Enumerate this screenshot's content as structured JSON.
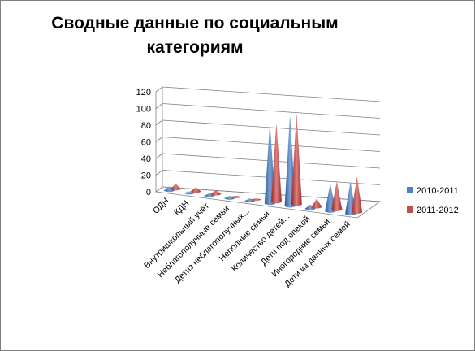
{
  "chart_data": {
    "type": "bar",
    "title": "Сводные данные по социальным категориям",
    "title_lines": [
      "Сводные данные по социальным",
      "категориям"
    ],
    "categories": [
      "ОДН",
      "КДН",
      "Внутришкольный учёт",
      "Неблагополучные семьи",
      "Детиз неблагополучных...",
      "Неполные семьи",
      "Количество детей...",
      "Дети под опекой",
      "Иногородние семьи",
      "Дети из данных семей"
    ],
    "series": [
      {
        "name": "2010-2011",
        "values": [
          5,
          2,
          3,
          3,
          3,
          95,
          107,
          5,
          33,
          38
        ],
        "color": "#4f81bd"
      },
      {
        "name": "2011-2012",
        "values": [
          6,
          5,
          5,
          1,
          1,
          92,
          108,
          10,
          33,
          42
        ],
        "color": "#c0504d"
      }
    ],
    "yticks": [
      0,
      20,
      40,
      60,
      80,
      100,
      120
    ],
    "ylim": [
      0,
      120
    ],
    "grid": true,
    "legend": "right",
    "xlabel": "",
    "ylabel": ""
  }
}
